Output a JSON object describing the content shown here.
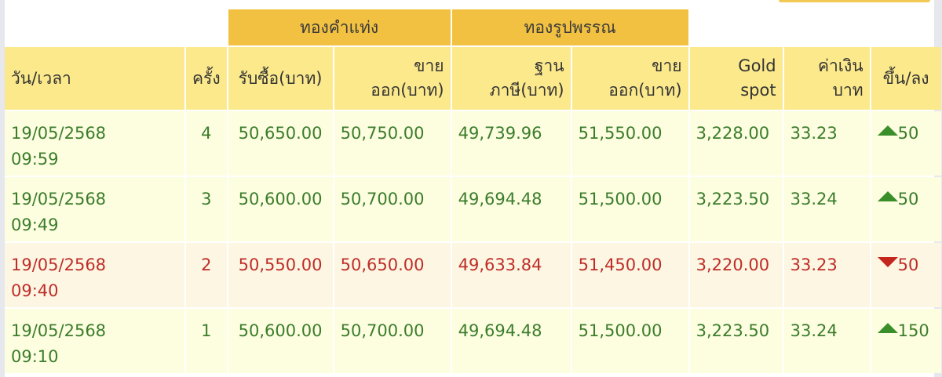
{
  "colors": {
    "up": "#3b7d2b",
    "down": "#bf2d28",
    "group_header": "#f2c142",
    "header": "#fbe98c"
  },
  "groups": {
    "bar": "ทองคำแท่ง",
    "ornament": "ทองรูปพรรณ"
  },
  "headers": {
    "datetime": "วัน/เวลา",
    "count": "ครั้ง",
    "bar_buy": "รับซื้อ(บาท)",
    "bar_sell_1": "ขาย",
    "bar_sell_2": "ออก(บาท)",
    "orn_base_1": "ฐาน",
    "orn_base_2": "ภาษี(บาท)",
    "orn_sell_1": "ขาย",
    "orn_sell_2": "ออก(บาท)",
    "spot_1": "Gold",
    "spot_2": "spot",
    "thb_1": "ค่าเงิน",
    "thb_2": "บาท",
    "change": "ขึ้น/ลง"
  },
  "rows": [
    {
      "date": "19/05/2568",
      "time": "09:59",
      "count": "4",
      "bar_buy": "50,650.00",
      "bar_sell": "50,750.00",
      "orn_base": "49,739.96",
      "orn_sell": "51,550.00",
      "spot": "3,228.00",
      "thb": "33.23",
      "direction": "up",
      "change": "50"
    },
    {
      "date": "19/05/2568",
      "time": "09:49",
      "count": "3",
      "bar_buy": "50,600.00",
      "bar_sell": "50,700.00",
      "orn_base": "49,694.48",
      "orn_sell": "51,500.00",
      "spot": "3,223.50",
      "thb": "33.24",
      "direction": "up",
      "change": "50"
    },
    {
      "date": "19/05/2568",
      "time": "09:40",
      "count": "2",
      "bar_buy": "50,550.00",
      "bar_sell": "50,650.00",
      "orn_base": "49,633.84",
      "orn_sell": "51,450.00",
      "spot": "3,220.00",
      "thb": "33.23",
      "direction": "down",
      "change": "50"
    },
    {
      "date": "19/05/2568",
      "time": "09:10",
      "count": "1",
      "bar_buy": "50,600.00",
      "bar_sell": "50,700.00",
      "orn_base": "49,694.48",
      "orn_sell": "51,500.00",
      "spot": "3,223.50",
      "thb": "33.24",
      "direction": "up",
      "change": "150"
    }
  ]
}
